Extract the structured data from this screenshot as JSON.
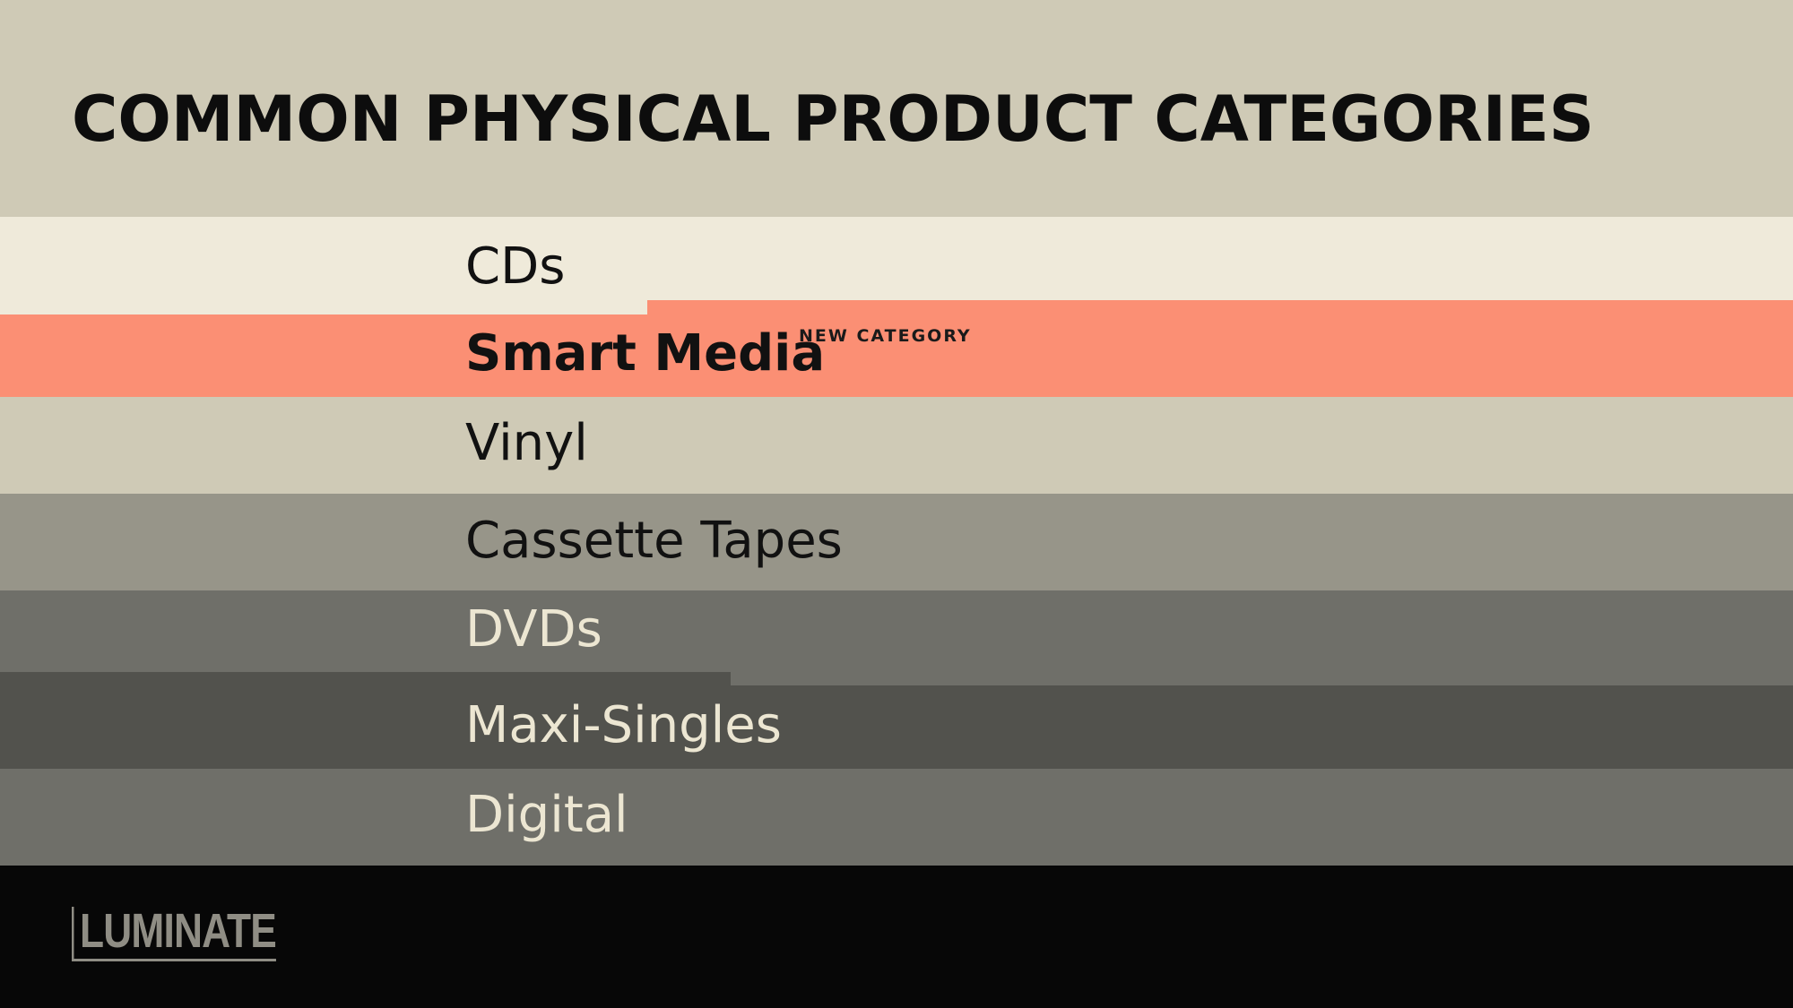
{
  "title": "COMMON PHYSICAL PRODUCT CATEGORIES",
  "items": [
    {
      "label": "CDs"
    },
    {
      "label": "Smart Media",
      "badge": "NEW CATEGORY"
    },
    {
      "label": "Vinyl"
    },
    {
      "label": "Cassette Tapes"
    },
    {
      "label": "DVDs"
    },
    {
      "label": "Maxi-Singles"
    },
    {
      "label": "Digital"
    }
  ],
  "footer": {
    "logo": "LUMINATE"
  }
}
